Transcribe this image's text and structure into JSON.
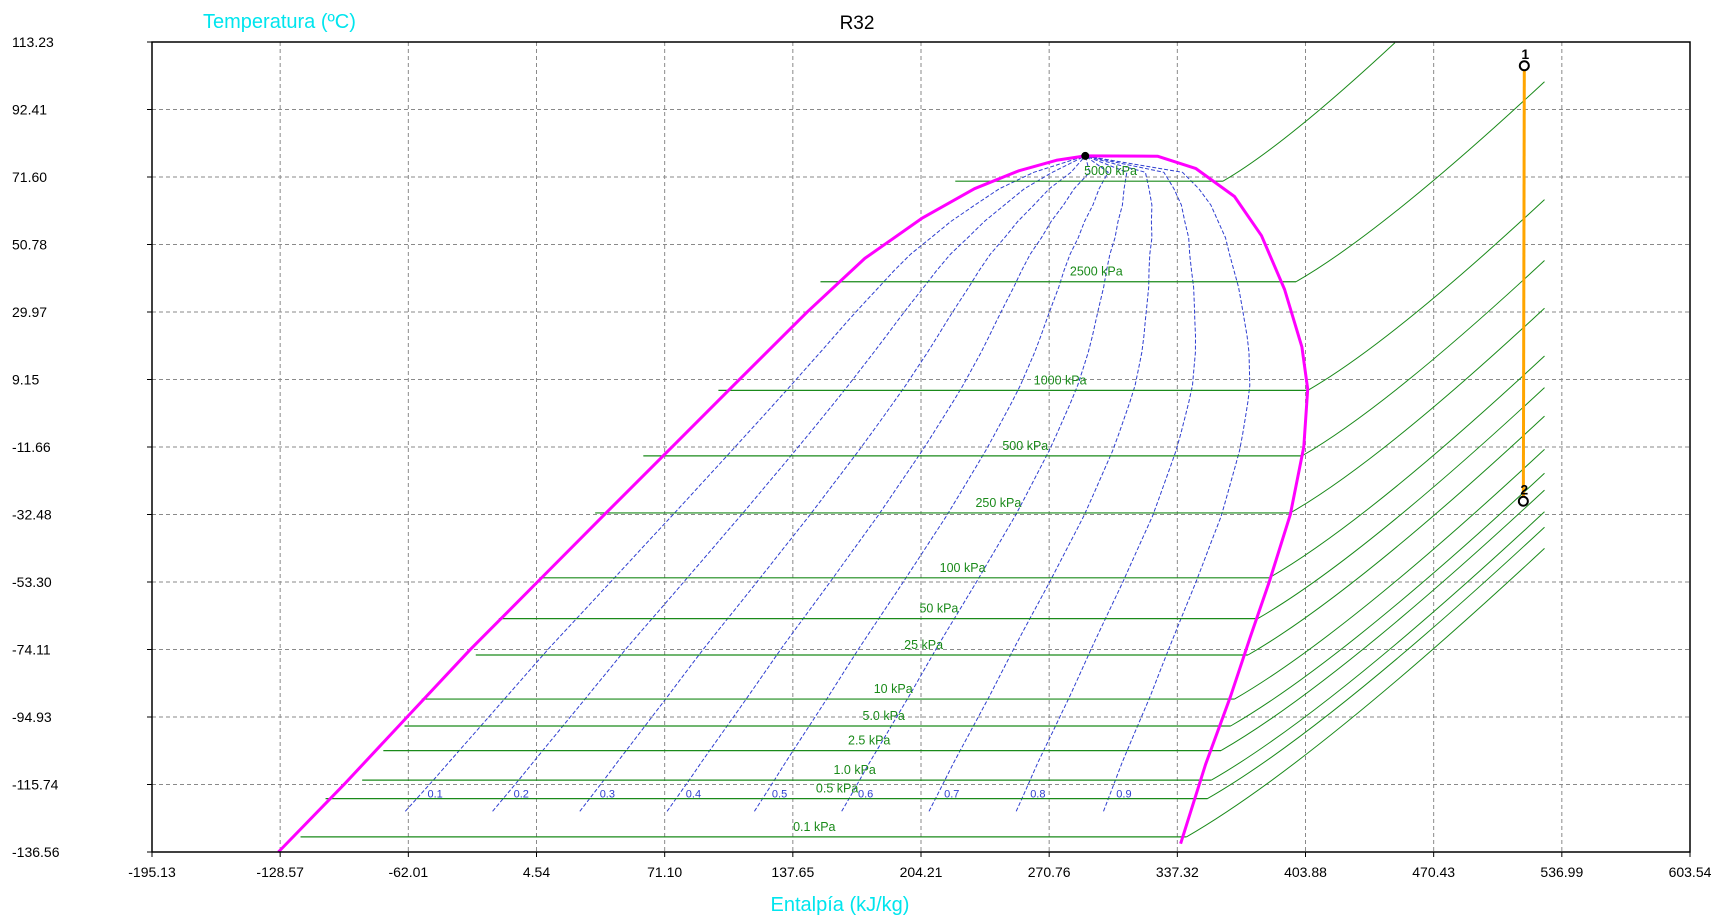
{
  "chart_data": {
    "type": "line",
    "title": "R32",
    "xlabel": "Entalpía (kJ/kg)",
    "ylabel": "Temperatura (ºC)",
    "xlim": [
      -195.13,
      603.54
    ],
    "ylim": [
      -136.56,
      113.23
    ],
    "x_ticks": [
      "-195.13",
      "-128.57",
      "-62.01",
      "4.54",
      "71.10",
      "137.65",
      "204.21",
      "270.76",
      "337.32",
      "403.88",
      "470.43",
      "536.99",
      "603.54"
    ],
    "y_ticks": [
      "113.23",
      "92.41",
      "71.60",
      "50.78",
      "29.97",
      "9.15",
      "-11.66",
      "-32.48",
      "-53.30",
      "-74.11",
      "-94.93",
      "-115.74",
      "-136.56"
    ],
    "grid": true,
    "colors": {
      "saturation_dome": "#ff00ff",
      "isobars": "#1a8a1a",
      "quality_lines": "#2f3fd0",
      "process": "#ffa500",
      "axis_title": "#00e5ee",
      "grid": "#8a8a8a"
    },
    "critical_point": {
      "h": 289.5,
      "t": 78.1
    },
    "saturated_liquid": {
      "h": [
        -129.5,
        -95,
        -62,
        -30,
        5,
        40,
        75,
        110,
        145,
        175,
        205,
        232,
        255,
        275,
        289.5
      ],
      "t": [
        -136.56,
        -115.5,
        -94.5,
        -74.2,
        -53.3,
        -32.4,
        -11.6,
        9.2,
        29.9,
        46.5,
        59.0,
        68.0,
        73.5,
        76.8,
        78.1
      ]
    },
    "saturated_vapor": {
      "h": [
        289.5,
        327,
        347,
        367,
        381,
        393,
        402,
        405,
        403,
        396,
        385,
        375,
        365,
        352,
        339
      ],
      "t": [
        78.1,
        78.0,
        74.2,
        65.6,
        53.5,
        36.9,
        19.2,
        6.2,
        -11.6,
        -32.5,
        -53.3,
        -70.6,
        -88.5,
        -109.5,
        -134.0
      ]
    },
    "isobars": [
      {
        "name": "5000 kPa",
        "t_sat": 70.3,
        "h_liq": 222,
        "h_vap": 361
      },
      {
        "name": "2500 kPa",
        "t_sat": 39.3,
        "h_liq": 152,
        "h_vap": 399
      },
      {
        "name": "1000 kPa",
        "t_sat": 5.8,
        "h_liq": 99,
        "h_vap": 405
      },
      {
        "name": "500 kPa",
        "t_sat": -14.4,
        "h_liq": 60,
        "h_vap": 402
      },
      {
        "name": "250 kPa",
        "t_sat": -32.0,
        "h_liq": 35,
        "h_vap": 396
      },
      {
        "name": "100 kPa",
        "t_sat": -52.0,
        "h_liq": 6,
        "h_vap": 385
      },
      {
        "name": "50 kPa",
        "t_sat": -64.6,
        "h_liq": -15,
        "h_vap": 379
      },
      {
        "name": "25 kPa",
        "t_sat": -75.8,
        "h_liq": -27,
        "h_vap": 374
      },
      {
        "name": "10 kPa",
        "t_sat": -89.4,
        "h_liq": -55,
        "h_vap": 367
      },
      {
        "name": "5.0 kPa",
        "t_sat": -97.7,
        "h_liq": -64,
        "h_vap": 365
      },
      {
        "name": "2.5 kPa",
        "t_sat": -105.3,
        "h_liq": -75,
        "h_vap": 360
      },
      {
        "name": "1.0 kPa",
        "t_sat": -114.4,
        "h_liq": -86,
        "h_vap": 355
      },
      {
        "name": "0.5 kPa",
        "t_sat": -120.1,
        "h_liq": -105,
        "h_vap": 353
      },
      {
        "name": "0.1 kPa",
        "t_sat": -131.9,
        "h_liq": -118,
        "h_vap": 342
      }
    ],
    "quality_lines": [
      "0.1",
      "0.2",
      "0.3",
      "0.4",
      "0.5",
      "0.6",
      "0.7",
      "0.8",
      "0.9"
    ],
    "process": {
      "points": [
        {
          "label": "1",
          "h": 517.5,
          "t": 105.9
        },
        {
          "label": "2",
          "h": 517.0,
          "t": -28.4
        }
      ]
    }
  }
}
